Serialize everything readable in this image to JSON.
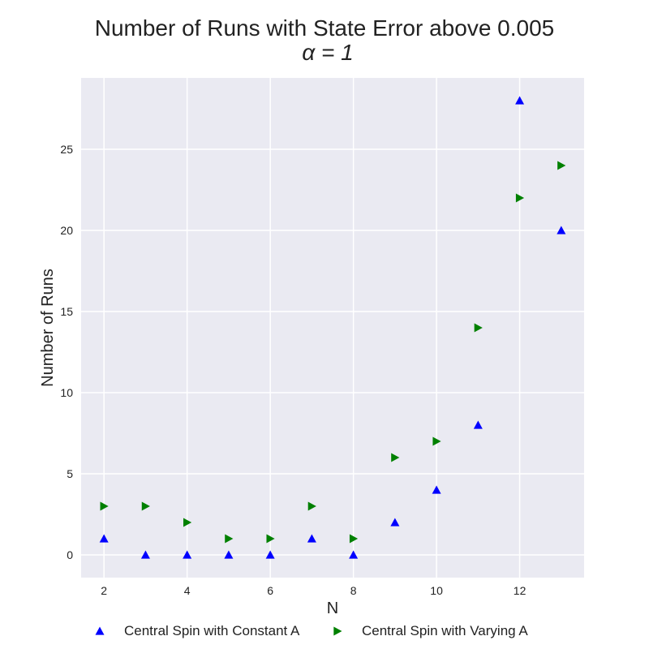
{
  "chart_data": {
    "type": "scatter",
    "title": "Number of Runs with State Error above 0.005",
    "subtitle": "α = 1",
    "xlabel": "N",
    "ylabel": "Number of Runs",
    "xlim": [
      1.45,
      13.55
    ],
    "ylim": [
      -1.4,
      29.4
    ],
    "xticks": [
      2,
      4,
      6,
      8,
      10,
      12
    ],
    "yticks": [
      0,
      5,
      10,
      15,
      20,
      25
    ],
    "grid": true,
    "legend_position": "bottom",
    "background_color": "#eaeaf2",
    "grid_color": "#ffffff",
    "x": [
      2,
      3,
      4,
      5,
      6,
      7,
      8,
      9,
      10,
      11,
      12,
      13
    ],
    "series": [
      {
        "name": "Central Spin with Constant A",
        "marker": "triangle-up",
        "color": "#0000ff",
        "values": [
          1,
          0,
          0,
          0,
          0,
          1,
          0,
          2,
          4,
          8,
          28,
          20
        ]
      },
      {
        "name": "Central Spin with Varying A",
        "marker": "triangle-right",
        "color": "#008000",
        "values": [
          3,
          3,
          2,
          1,
          1,
          3,
          1,
          6,
          7,
          14,
          22,
          24
        ]
      }
    ]
  }
}
